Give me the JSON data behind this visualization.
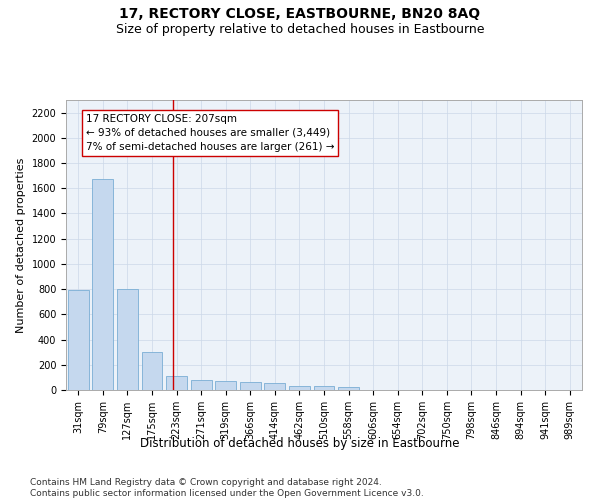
{
  "title": "17, RECTORY CLOSE, EASTBOURNE, BN20 8AQ",
  "subtitle": "Size of property relative to detached houses in Eastbourne",
  "xlabel": "Distribution of detached houses by size in Eastbourne",
  "ylabel": "Number of detached properties",
  "categories": [
    "31sqm",
    "79sqm",
    "127sqm",
    "175sqm",
    "223sqm",
    "271sqm",
    "319sqm",
    "366sqm",
    "414sqm",
    "462sqm",
    "510sqm",
    "558sqm",
    "606sqm",
    "654sqm",
    "702sqm",
    "750sqm",
    "798sqm",
    "846sqm",
    "894sqm",
    "941sqm",
    "989sqm"
  ],
  "bar_heights": [
    790,
    1670,
    800,
    300,
    115,
    80,
    70,
    60,
    55,
    35,
    30,
    25,
    0,
    0,
    0,
    0,
    0,
    0,
    0,
    0,
    0
  ],
  "bar_color": "#c5d8ee",
  "bar_edge_color": "#7aaed4",
  "grid_color": "#ccd8e8",
  "vline_x": 3.85,
  "vline_color": "#cc0000",
  "annotation_text": "17 RECTORY CLOSE: 207sqm\n← 93% of detached houses are smaller (3,449)\n7% of semi-detached houses are larger (261) →",
  "annotation_box_color": "#ffffff",
  "annotation_box_edge": "#cc0000",
  "ylim": [
    0,
    2300
  ],
  "yticks": [
    0,
    200,
    400,
    600,
    800,
    1000,
    1200,
    1400,
    1600,
    1800,
    2000,
    2200
  ],
  "footer": "Contains HM Land Registry data © Crown copyright and database right 2024.\nContains public sector information licensed under the Open Government Licence v3.0.",
  "title_fontsize": 10,
  "subtitle_fontsize": 9,
  "xlabel_fontsize": 8.5,
  "ylabel_fontsize": 8,
  "tick_fontsize": 7,
  "footer_fontsize": 6.5,
  "annotation_fontsize": 7.5
}
